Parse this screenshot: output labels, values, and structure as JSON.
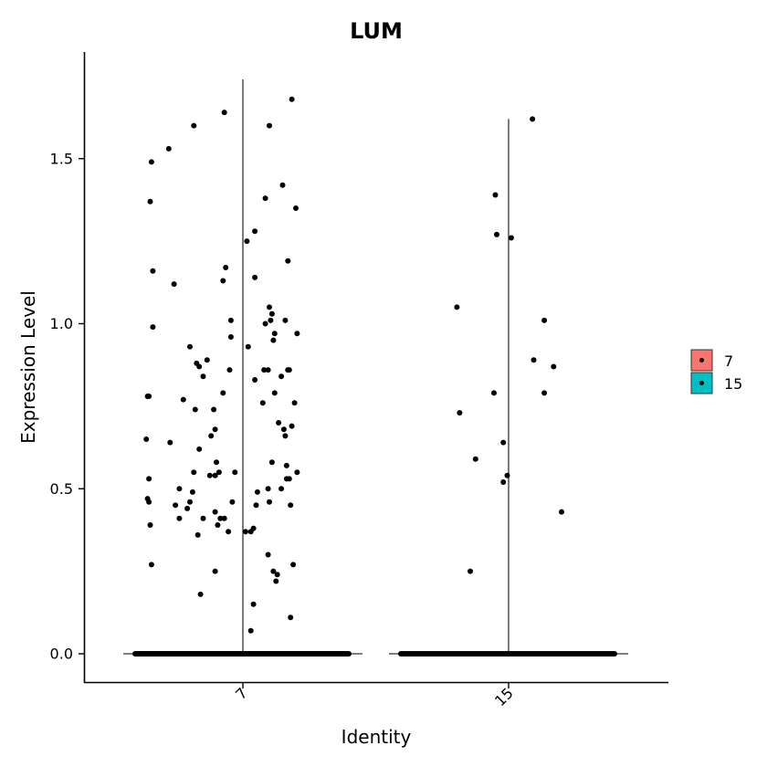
{
  "chart_data": {
    "type": "scatter",
    "title": "LUM",
    "xlabel": "Identity",
    "ylabel": "Expression Level",
    "categories": [
      "7",
      "15"
    ],
    "y_ticks": [
      "0.0",
      "0.5",
      "1.0",
      "1.5"
    ],
    "ylim": [
      -0.085,
      1.75
    ],
    "grid": false,
    "legend": {
      "position": "right",
      "entries": [
        "7",
        "15"
      ]
    },
    "colors": {
      "7": "#F8766D",
      "15": "#00BFC4",
      "points": "#000000"
    },
    "violin_max": {
      "7": 1.74,
      "15": 1.62
    },
    "series": [
      {
        "name": "7",
        "zero_count": 300,
        "nonzero_points": [
          [
            -0.69,
            1.49
          ],
          [
            -0.7,
            1.37
          ],
          [
            -0.68,
            1.16
          ],
          [
            -0.68,
            0.99
          ],
          [
            -0.72,
            0.78
          ],
          [
            -0.71,
            0.78
          ],
          [
            -0.73,
            0.65
          ],
          [
            -0.71,
            0.53
          ],
          [
            -0.72,
            0.47
          ],
          [
            -0.71,
            0.46
          ],
          [
            -0.7,
            0.39
          ],
          [
            -0.69,
            0.27
          ],
          [
            -0.56,
            1.53
          ],
          [
            -0.52,
            1.12
          ],
          [
            -0.55,
            0.64
          ],
          [
            -0.45,
            0.77
          ],
          [
            -0.48,
            0.5
          ],
          [
            -0.51,
            0.45
          ],
          [
            -0.48,
            0.41
          ],
          [
            -0.37,
            1.6
          ],
          [
            -0.4,
            0.93
          ],
          [
            -0.35,
            0.88
          ],
          [
            -0.33,
            0.87
          ],
          [
            -0.3,
            0.84
          ],
          [
            -0.27,
            0.89
          ],
          [
            -0.36,
            0.74
          ],
          [
            -0.37,
            0.55
          ],
          [
            -0.33,
            0.62
          ],
          [
            -0.42,
            0.44
          ],
          [
            -0.4,
            0.46
          ],
          [
            -0.38,
            0.49
          ],
          [
            -0.34,
            0.36
          ],
          [
            -0.3,
            0.41
          ],
          [
            -0.32,
            0.18
          ],
          [
            -0.14,
            1.64
          ],
          [
            -0.15,
            1.13
          ],
          [
            -0.13,
            1.17
          ],
          [
            -0.09,
            1.01
          ],
          [
            -0.1,
            0.86
          ],
          [
            -0.09,
            0.96
          ],
          [
            -0.15,
            0.79
          ],
          [
            -0.22,
            0.74
          ],
          [
            -0.21,
            0.68
          ],
          [
            -0.24,
            0.66
          ],
          [
            -0.2,
            0.58
          ],
          [
            -0.18,
            0.55
          ],
          [
            -0.21,
            0.54
          ],
          [
            -0.25,
            0.54
          ],
          [
            -0.21,
            0.43
          ],
          [
            -0.17,
            0.41
          ],
          [
            -0.19,
            0.39
          ],
          [
            -0.14,
            0.41
          ],
          [
            -0.11,
            0.37
          ],
          [
            -0.08,
            0.46
          ],
          [
            -0.06,
            0.55
          ],
          [
            -0.21,
            0.25
          ],
          [
            0.03,
            1.25
          ],
          [
            0.09,
            1.28
          ],
          [
            0.09,
            1.14
          ],
          [
            0.04,
            0.93
          ],
          [
            0.09,
            0.83
          ],
          [
            0.02,
            0.37
          ],
          [
            0.06,
            0.37
          ],
          [
            0.08,
            0.38
          ],
          [
            0.1,
            0.45
          ],
          [
            0.11,
            0.49
          ],
          [
            0.08,
            0.15
          ],
          [
            0.06,
            0.07
          ],
          [
            0.17,
            1.38
          ],
          [
            0.2,
            1.6
          ],
          [
            0.17,
            1.0
          ],
          [
            0.2,
            1.05
          ],
          [
            0.15,
            0.76
          ],
          [
            0.16,
            0.86
          ],
          [
            0.19,
            0.86
          ],
          [
            0.24,
            0.97
          ],
          [
            0.22,
            1.03
          ],
          [
            0.21,
            1.01
          ],
          [
            0.23,
            0.95
          ],
          [
            0.19,
            0.5
          ],
          [
            0.22,
            0.58
          ],
          [
            0.24,
            0.79
          ],
          [
            0.2,
            0.46
          ],
          [
            0.27,
            0.7
          ],
          [
            0.23,
            0.25
          ],
          [
            0.26,
            0.24
          ],
          [
            0.25,
            0.22
          ],
          [
            0.19,
            0.3
          ],
          [
            0.29,
            0.5
          ],
          [
            0.31,
            0.68
          ],
          [
            0.32,
            0.66
          ],
          [
            0.34,
            1.19
          ],
          [
            0.3,
            1.42
          ],
          [
            0.34,
            0.86
          ],
          [
            0.29,
            0.84
          ],
          [
            0.33,
            0.53
          ],
          [
            0.33,
            0.57
          ],
          [
            0.35,
            0.53
          ],
          [
            0.37,
            0.69
          ],
          [
            0.36,
            0.45
          ],
          [
            0.37,
            1.68
          ],
          [
            0.4,
            1.35
          ],
          [
            0.41,
            0.97
          ],
          [
            0.39,
            0.76
          ],
          [
            0.41,
            0.55
          ],
          [
            0.38,
            0.27
          ],
          [
            0.32,
            1.01
          ],
          [
            0.36,
            0.11
          ],
          [
            0.35,
            0.86
          ]
        ]
      },
      {
        "name": "15",
        "zero_count": 170,
        "nonzero_points": [
          [
            -0.39,
            1.05
          ],
          [
            -0.37,
            0.73
          ],
          [
            -0.25,
            0.59
          ],
          [
            -0.29,
            0.25
          ],
          [
            -0.11,
            0.79
          ],
          [
            -0.1,
            1.39
          ],
          [
            -0.09,
            1.27
          ],
          [
            -0.04,
            0.64
          ],
          [
            -0.04,
            0.52
          ],
          [
            -0.01,
            0.54
          ],
          [
            0.02,
            1.26
          ],
          [
            0.18,
            1.62
          ],
          [
            0.19,
            0.89
          ],
          [
            0.27,
            1.01
          ],
          [
            0.27,
            0.79
          ],
          [
            0.34,
            0.87
          ],
          [
            0.4,
            0.43
          ]
        ]
      }
    ]
  }
}
